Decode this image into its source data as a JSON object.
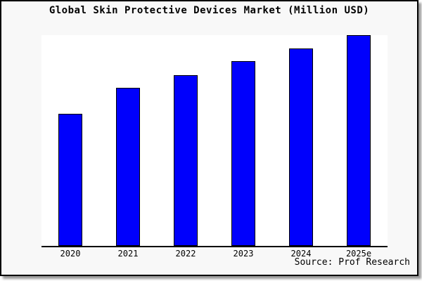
{
  "frame": {
    "background": "#f8f8f8",
    "border_color": "#000000",
    "plot_background": "#ffffff"
  },
  "chart_data": {
    "type": "bar",
    "title": "Global Skin Protective Devices Market (Million USD)",
    "categories": [
      "2020",
      "2021",
      "2022",
      "2023",
      "2024",
      "2025e"
    ],
    "values": [
      62.5,
      75,
      81,
      87.5,
      93.5,
      100
    ],
    "values_note": "no y-axis tick labels visible; values are relative units with tallest bar (2025e) = 100",
    "xlabel": "",
    "ylabel": "",
    "ylim": [
      0,
      100
    ],
    "grid": false,
    "legend": "none",
    "bar_color": "#0000fc",
    "bar_border_color": "#000000",
    "source": "Source: Prof Research"
  }
}
